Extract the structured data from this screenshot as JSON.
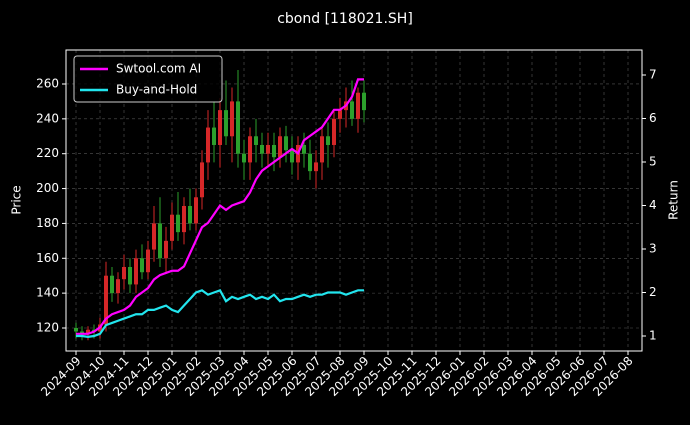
{
  "chart_data": {
    "type": "candlestick",
    "title": "cbond [118021.SH]",
    "ylabel": "Price",
    "y2label": "Return",
    "x": [
      "2024-09",
      "2024-09",
      "2024-09",
      "2024-09",
      "2024-10",
      "2024-10",
      "2024-10",
      "2024-10",
      "2024-11",
      "2024-11",
      "2024-11",
      "2024-11",
      "2024-12",
      "2024-12",
      "2024-12",
      "2024-12",
      "2025-01",
      "2025-01",
      "2025-01",
      "2025-01",
      "2025-02",
      "2025-02",
      "2025-02",
      "2025-02",
      "2025-03",
      "2025-03",
      "2025-03",
      "2025-03",
      "2025-04",
      "2025-04",
      "2025-04",
      "2025-04",
      "2025-05",
      "2025-05",
      "2025-05",
      "2025-05",
      "2025-06",
      "2025-06",
      "2025-06",
      "2025-06",
      "2025-07",
      "2025-07",
      "2025-07",
      "2025-07",
      "2025-08",
      "2025-08",
      "2025-08",
      "2025-08",
      "2025-09"
    ],
    "open": [
      120,
      118,
      117,
      119,
      118,
      122,
      150,
      140,
      148,
      155,
      145,
      160,
      152,
      165,
      180,
      160,
      170,
      185,
      175,
      190,
      180,
      195,
      215,
      235,
      225,
      245,
      230,
      250,
      220,
      215,
      230,
      225,
      220,
      225,
      218,
      230,
      222,
      215,
      225,
      220,
      210,
      215,
      230,
      225,
      240,
      245,
      250,
      240,
      255
    ],
    "high": [
      123,
      121,
      121,
      122,
      126,
      158,
      155,
      152,
      162,
      160,
      165,
      168,
      170,
      190,
      195,
      178,
      192,
      198,
      195,
      200,
      200,
      222,
      245,
      250,
      252,
      262,
      258,
      268,
      228,
      235,
      240,
      232,
      232,
      232,
      235,
      236,
      230,
      230,
      232,
      228,
      222,
      235,
      238,
      245,
      252,
      258,
      262,
      258,
      262
    ],
    "low": [
      114,
      113,
      113,
      114,
      114,
      118,
      135,
      134,
      142,
      140,
      140,
      148,
      148,
      158,
      155,
      152,
      165,
      170,
      168,
      176,
      176,
      188,
      205,
      215,
      212,
      225,
      215,
      212,
      205,
      205,
      215,
      212,
      212,
      210,
      212,
      215,
      208,
      205,
      212,
      205,
      200,
      205,
      212,
      218,
      232,
      235,
      236,
      232,
      238
    ],
    "close": [
      118,
      117,
      119,
      118,
      122,
      150,
      140,
      148,
      155,
      145,
      160,
      152,
      165,
      180,
      160,
      170,
      185,
      175,
      190,
      180,
      195,
      215,
      235,
      225,
      245,
      230,
      250,
      220,
      215,
      230,
      225,
      220,
      225,
      218,
      230,
      222,
      215,
      225,
      220,
      210,
      215,
      230,
      225,
      240,
      245,
      250,
      240,
      255,
      245
    ],
    "up_color": "#d62728",
    "down_color": "#2ca02c",
    "series": [
      {
        "name": "Swtool.com AI",
        "color": "#ff00ff",
        "axis": "y2",
        "values": [
          1.05,
          1.05,
          1.05,
          1.1,
          1.2,
          1.4,
          1.5,
          1.55,
          1.6,
          1.7,
          1.9,
          2.0,
          2.1,
          2.3,
          2.4,
          2.45,
          2.5,
          2.5,
          2.6,
          2.9,
          3.2,
          3.5,
          3.6,
          3.8,
          4.0,
          3.9,
          4.0,
          4.05,
          4.1,
          4.3,
          4.6,
          4.8,
          4.9,
          5.0,
          5.1,
          5.2,
          5.3,
          5.2,
          5.5,
          5.6,
          5.7,
          5.8,
          6.0,
          6.2,
          6.2,
          6.3,
          6.5,
          6.9,
          6.9
        ]
      },
      {
        "name": "Buy-and-Hold",
        "color": "#22e5ee",
        "axis": "y2",
        "values": [
          1.0,
          1.0,
          0.98,
          1.0,
          1.05,
          1.25,
          1.3,
          1.35,
          1.4,
          1.45,
          1.5,
          1.5,
          1.6,
          1.6,
          1.65,
          1.7,
          1.6,
          1.55,
          1.7,
          1.85,
          2.0,
          2.05,
          1.95,
          2.0,
          2.05,
          1.8,
          1.9,
          1.85,
          1.9,
          1.95,
          1.85,
          1.9,
          1.85,
          1.95,
          1.8,
          1.85,
          1.85,
          1.9,
          1.95,
          1.9,
          1.95,
          1.95,
          2.0,
          2.0,
          2.0,
          1.95,
          2.0,
          2.05,
          2.05
        ]
      }
    ],
    "xlim": [
      "2024-09",
      "2026-08"
    ],
    "xticks": [
      "2024-09",
      "2024-10",
      "2024-11",
      "2024-12",
      "2025-01",
      "2025-02",
      "2025-03",
      "2025-04",
      "2025-05",
      "2025-06",
      "2025-07",
      "2025-08",
      "2025-09",
      "2025-10",
      "2025-11",
      "2025-12",
      "2026-01",
      "2026-02",
      "2026-03",
      "2026-04",
      "2026-05",
      "2026-06",
      "2026-07",
      "2026-08"
    ],
    "ylim": [
      106.8,
      279.5
    ],
    "yticks": [
      120,
      140,
      160,
      180,
      200,
      220,
      240,
      260
    ],
    "y2lim": [
      0.655,
      7.575
    ],
    "y2ticks": [
      1,
      2,
      3,
      4,
      5,
      6,
      7
    ],
    "grid": true,
    "legend": "upper left"
  }
}
